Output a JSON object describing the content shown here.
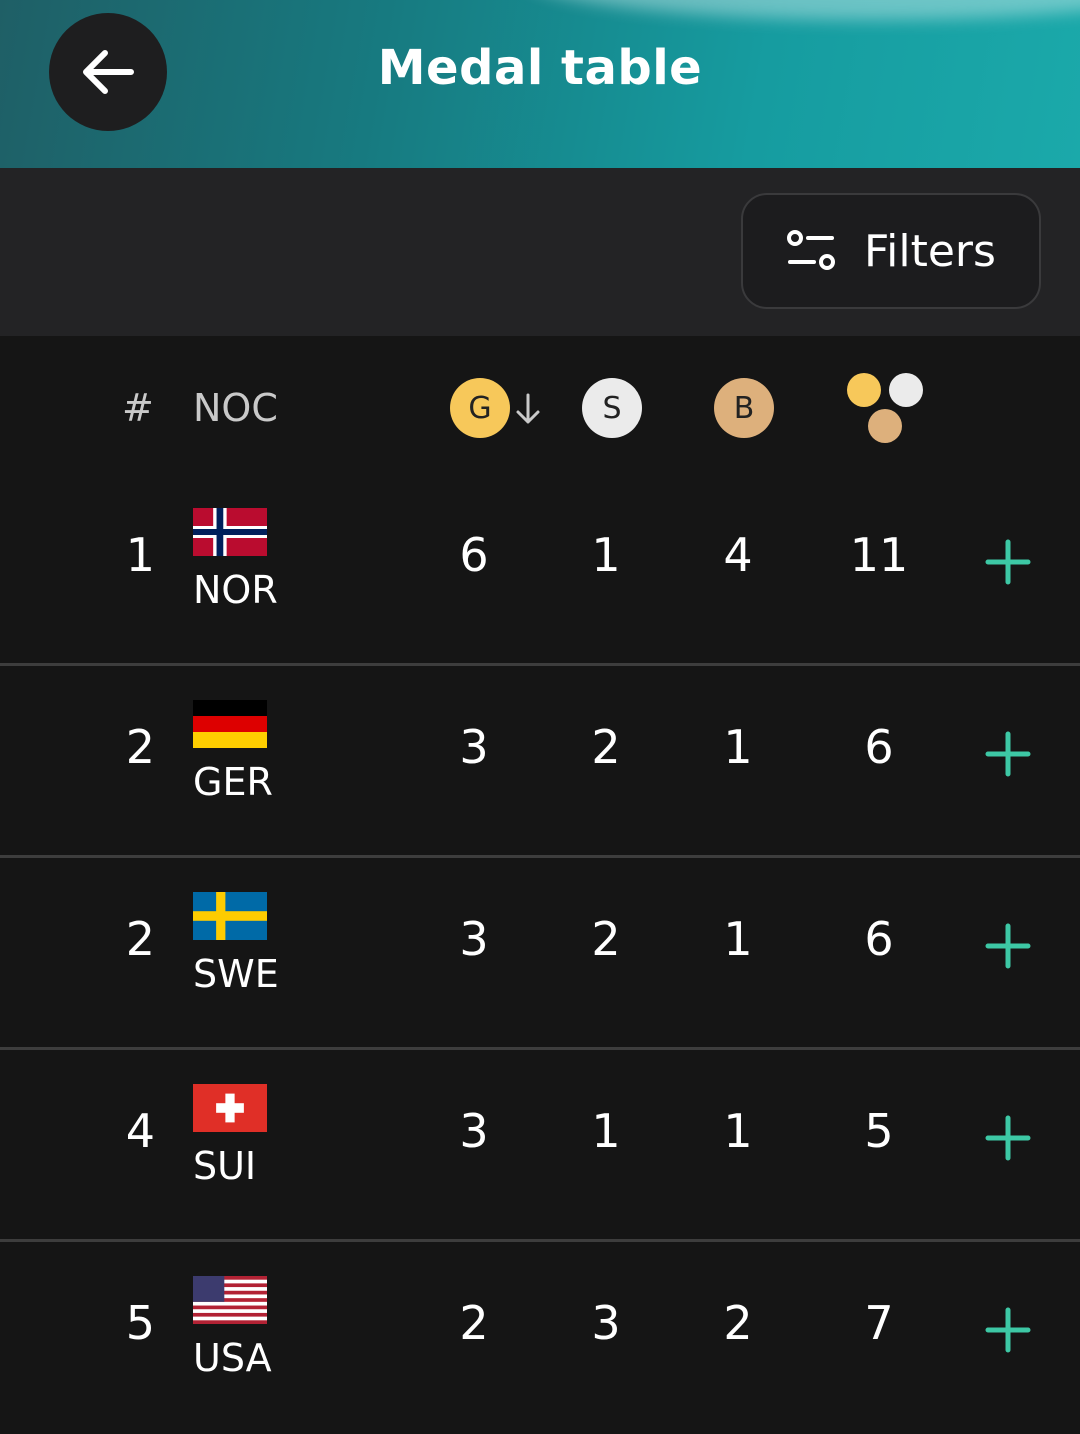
{
  "header": {
    "title": "Medal table"
  },
  "toolbar": {
    "filters_label": "Filters"
  },
  "table": {
    "columns": {
      "rank": "#",
      "noc": "NOC",
      "gold": "G",
      "silver": "S",
      "bronze": "B"
    },
    "colors": {
      "gold": "#f7c85a",
      "silver": "#ebebeb",
      "bronze": "#ddb07c",
      "accent": "#3dc8a5"
    },
    "rows": [
      {
        "rank": "1",
        "noc": "NOR",
        "flag": "norway-flag",
        "gold": "6",
        "silver": "1",
        "bronze": "4",
        "total": "11"
      },
      {
        "rank": "2",
        "noc": "GER",
        "flag": "germany-flag",
        "gold": "3",
        "silver": "2",
        "bronze": "1",
        "total": "6"
      },
      {
        "rank": "2",
        "noc": "SWE",
        "flag": "sweden-flag",
        "gold": "3",
        "silver": "2",
        "bronze": "1",
        "total": "6"
      },
      {
        "rank": "4",
        "noc": "SUI",
        "flag": "switzerland-flag",
        "gold": "3",
        "silver": "1",
        "bronze": "1",
        "total": "5"
      },
      {
        "rank": "5",
        "noc": "USA",
        "flag": "usa-flag",
        "gold": "2",
        "silver": "3",
        "bronze": "2",
        "total": "7"
      }
    ]
  }
}
